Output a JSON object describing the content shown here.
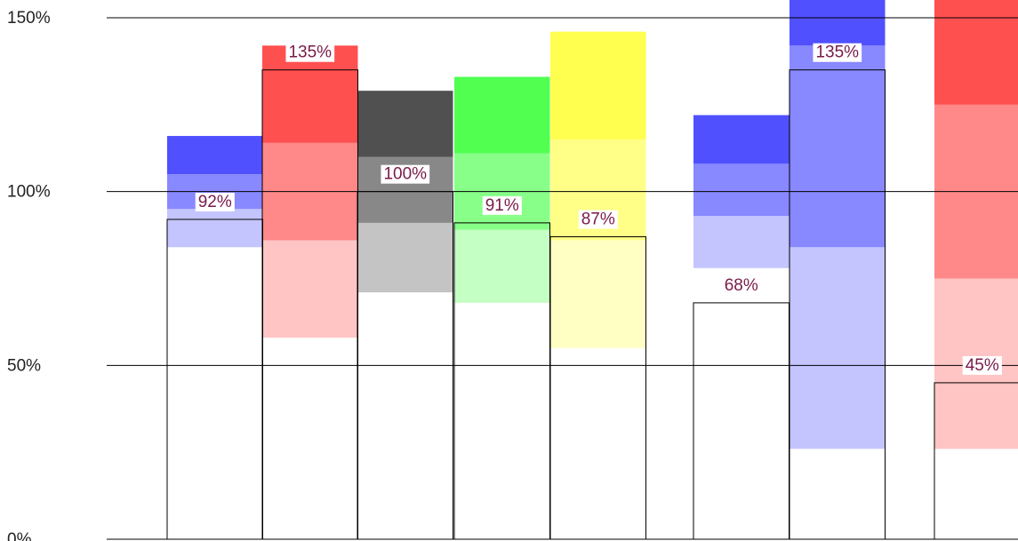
{
  "chart_data": {
    "type": "bullet",
    "ylim": [
      0,
      150
    ],
    "yticks": [
      {
        "value": 0,
        "label": "0%"
      },
      {
        "value": 50,
        "label": "50%"
      },
      {
        "value": 100,
        "label": "100%"
      },
      {
        "value": 150,
        "label": "150%"
      }
    ],
    "grid": true,
    "categories": [
      null,
      null,
      null,
      null,
      null,
      null,
      null,
      null
    ],
    "items": [
      {
        "colors": [
          "#c4c4ff",
          "#8888ff",
          "#5050ff"
        ],
        "ranges": [
          84,
          95,
          105,
          116
        ],
        "value": 92,
        "value_label": "92%"
      },
      {
        "colors": [
          "#ffc4c4",
          "#ff8888",
          "#ff5050"
        ],
        "ranges": [
          58,
          86,
          114,
          142
        ],
        "value": 135,
        "value_label": "135%"
      },
      {
        "colors": [
          "#c4c4c4",
          "#888888",
          "#505050"
        ],
        "ranges": [
          71,
          91,
          110,
          129
        ],
        "value": 100,
        "value_label": "100%"
      },
      {
        "colors": [
          "#c4ffc4",
          "#88ff88",
          "#50ff50"
        ],
        "ranges": [
          68,
          89,
          111,
          133
        ],
        "value": 91,
        "value_label": "91%"
      },
      {
        "colors": [
          "#ffffc4",
          "#ffff88",
          "#ffff50"
        ],
        "ranges": [
          55,
          86,
          115,
          146
        ],
        "value": 87,
        "value_label": "87%"
      },
      {
        "colors": [
          "#c4c4ff",
          "#8888ff",
          "#5050ff"
        ],
        "ranges": [
          78,
          93,
          108,
          122
        ],
        "value": 68,
        "value_label": "68%"
      },
      {
        "colors": [
          "#c4c4ff",
          "#8888ff",
          "#5050ff"
        ],
        "ranges": [
          26,
          84,
          142,
          160
        ],
        "value": 135,
        "value_label": "135%"
      },
      {
        "colors": [
          "#ffc4c4",
          "#ff8888",
          "#ff5050"
        ],
        "ranges": [
          26,
          75,
          125,
          175
        ],
        "value": 45,
        "value_label": "45%"
      }
    ]
  }
}
